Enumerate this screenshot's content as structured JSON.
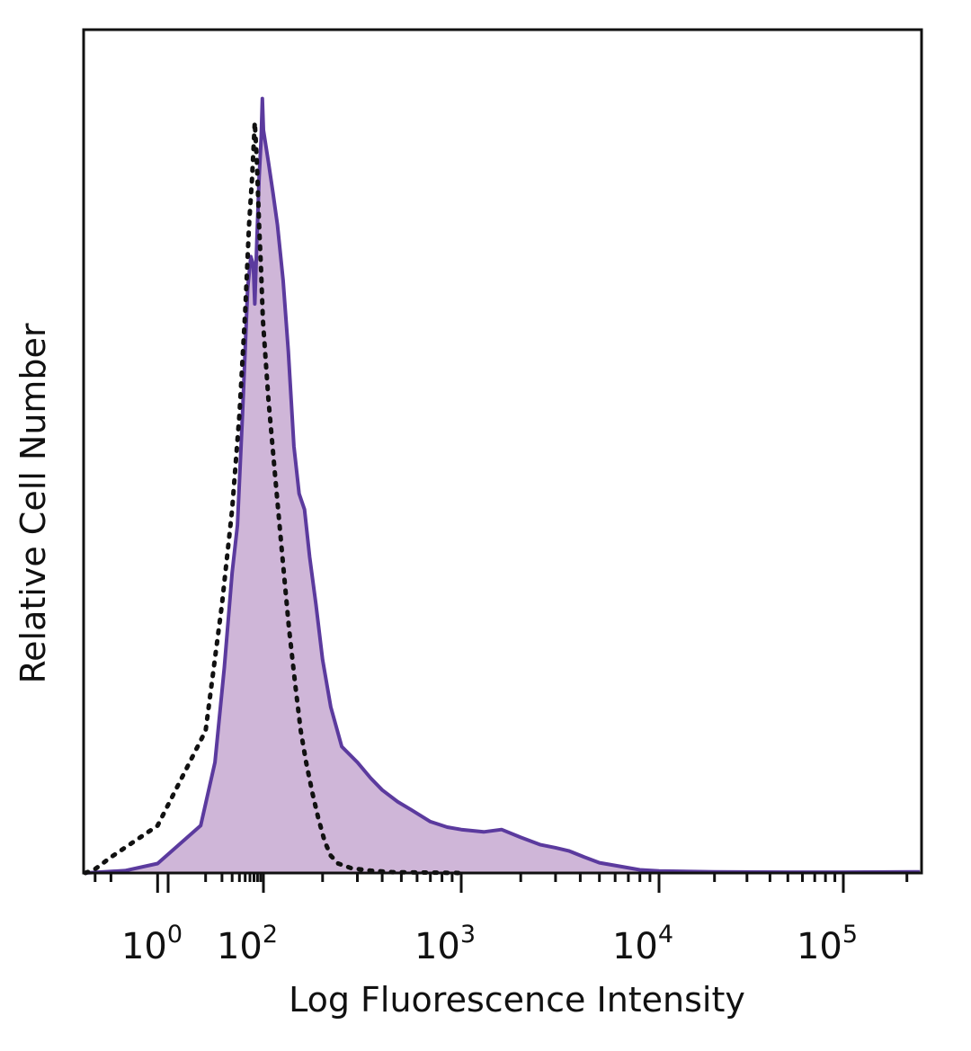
{
  "chart_data": {
    "type": "area",
    "xlabel": "Log Fluorescence Intensity",
    "ylabel": "Relative Cell Number",
    "xscale": "biexponential",
    "xlim": [
      -30,
      230000
    ],
    "ylim": [
      0,
      100
    ],
    "grid": false,
    "legend": "none",
    "x_ticks": [
      {
        "value": 1,
        "base": "10",
        "exp": "0"
      },
      {
        "value": 100,
        "base": "10",
        "exp": "2"
      },
      {
        "value": 1000,
        "base": "10",
        "exp": "3"
      },
      {
        "value": 10000,
        "base": "10",
        "exp": "4"
      },
      {
        "value": 100000,
        "base": "10",
        "exp": "5"
      }
    ],
    "series": [
      {
        "style": "filled solid line",
        "color": "#5b3a9e",
        "fill": "#cfb6d8",
        "points": [
          [
            -30,
            0
          ],
          [
            -5,
            0.3
          ],
          [
            0,
            1.2
          ],
          [
            8,
            6
          ],
          [
            15,
            14
          ],
          [
            22,
            26
          ],
          [
            30,
            38
          ],
          [
            37,
            44
          ],
          [
            45,
            58
          ],
          [
            55,
            74
          ],
          [
            62,
            78
          ],
          [
            68,
            77
          ],
          [
            72,
            72
          ],
          [
            78,
            80
          ],
          [
            85,
            88
          ],
          [
            92,
            93
          ],
          [
            96,
            98
          ],
          [
            100,
            94
          ],
          [
            106,
            90
          ],
          [
            112,
            86
          ],
          [
            118,
            82
          ],
          [
            126,
            75
          ],
          [
            134,
            66
          ],
          [
            143,
            54
          ],
          [
            152,
            48
          ],
          [
            162,
            46
          ],
          [
            172,
            40
          ],
          [
            185,
            34
          ],
          [
            200,
            27
          ],
          [
            220,
            21
          ],
          [
            250,
            16
          ],
          [
            300,
            14
          ],
          [
            350,
            12
          ],
          [
            400,
            10.5
          ],
          [
            480,
            9
          ],
          [
            560,
            8
          ],
          [
            700,
            6.5
          ],
          [
            850,
            5.8
          ],
          [
            1000,
            5.5
          ],
          [
            1300,
            5.2
          ],
          [
            1600,
            5.5
          ],
          [
            2000,
            4.5
          ],
          [
            2500,
            3.6
          ],
          [
            3000,
            3.2
          ],
          [
            3500,
            2.8
          ],
          [
            4200,
            2
          ],
          [
            5000,
            1.3
          ],
          [
            6500,
            0.8
          ],
          [
            8000,
            0.4
          ],
          [
            10000,
            0.25
          ],
          [
            20000,
            0.15
          ],
          [
            50000,
            0.1
          ],
          [
            100000,
            0.1
          ],
          [
            230000,
            0.15
          ]
        ]
      },
      {
        "style": "dotted line",
        "color": "#111111",
        "points": [
          [
            -30,
            0
          ],
          [
            -20,
            0.5
          ],
          [
            -10,
            2
          ],
          [
            0,
            6
          ],
          [
            10,
            18
          ],
          [
            20,
            34
          ],
          [
            30,
            46
          ],
          [
            40,
            58
          ],
          [
            50,
            71
          ],
          [
            58,
            82
          ],
          [
            65,
            88
          ],
          [
            72,
            95
          ],
          [
            78,
            90
          ],
          [
            85,
            82
          ],
          [
            92,
            76
          ],
          [
            98,
            70
          ],
          [
            106,
            60
          ],
          [
            115,
            50
          ],
          [
            125,
            40
          ],
          [
            135,
            31
          ],
          [
            145,
            24
          ],
          [
            155,
            18
          ],
          [
            165,
            14
          ],
          [
            178,
            10
          ],
          [
            190,
            7
          ],
          [
            205,
            4
          ],
          [
            220,
            2.2
          ],
          [
            240,
            1.2
          ],
          [
            280,
            0.6
          ],
          [
            350,
            0.3
          ],
          [
            450,
            0.1
          ],
          [
            1000,
            0
          ]
        ]
      }
    ]
  }
}
